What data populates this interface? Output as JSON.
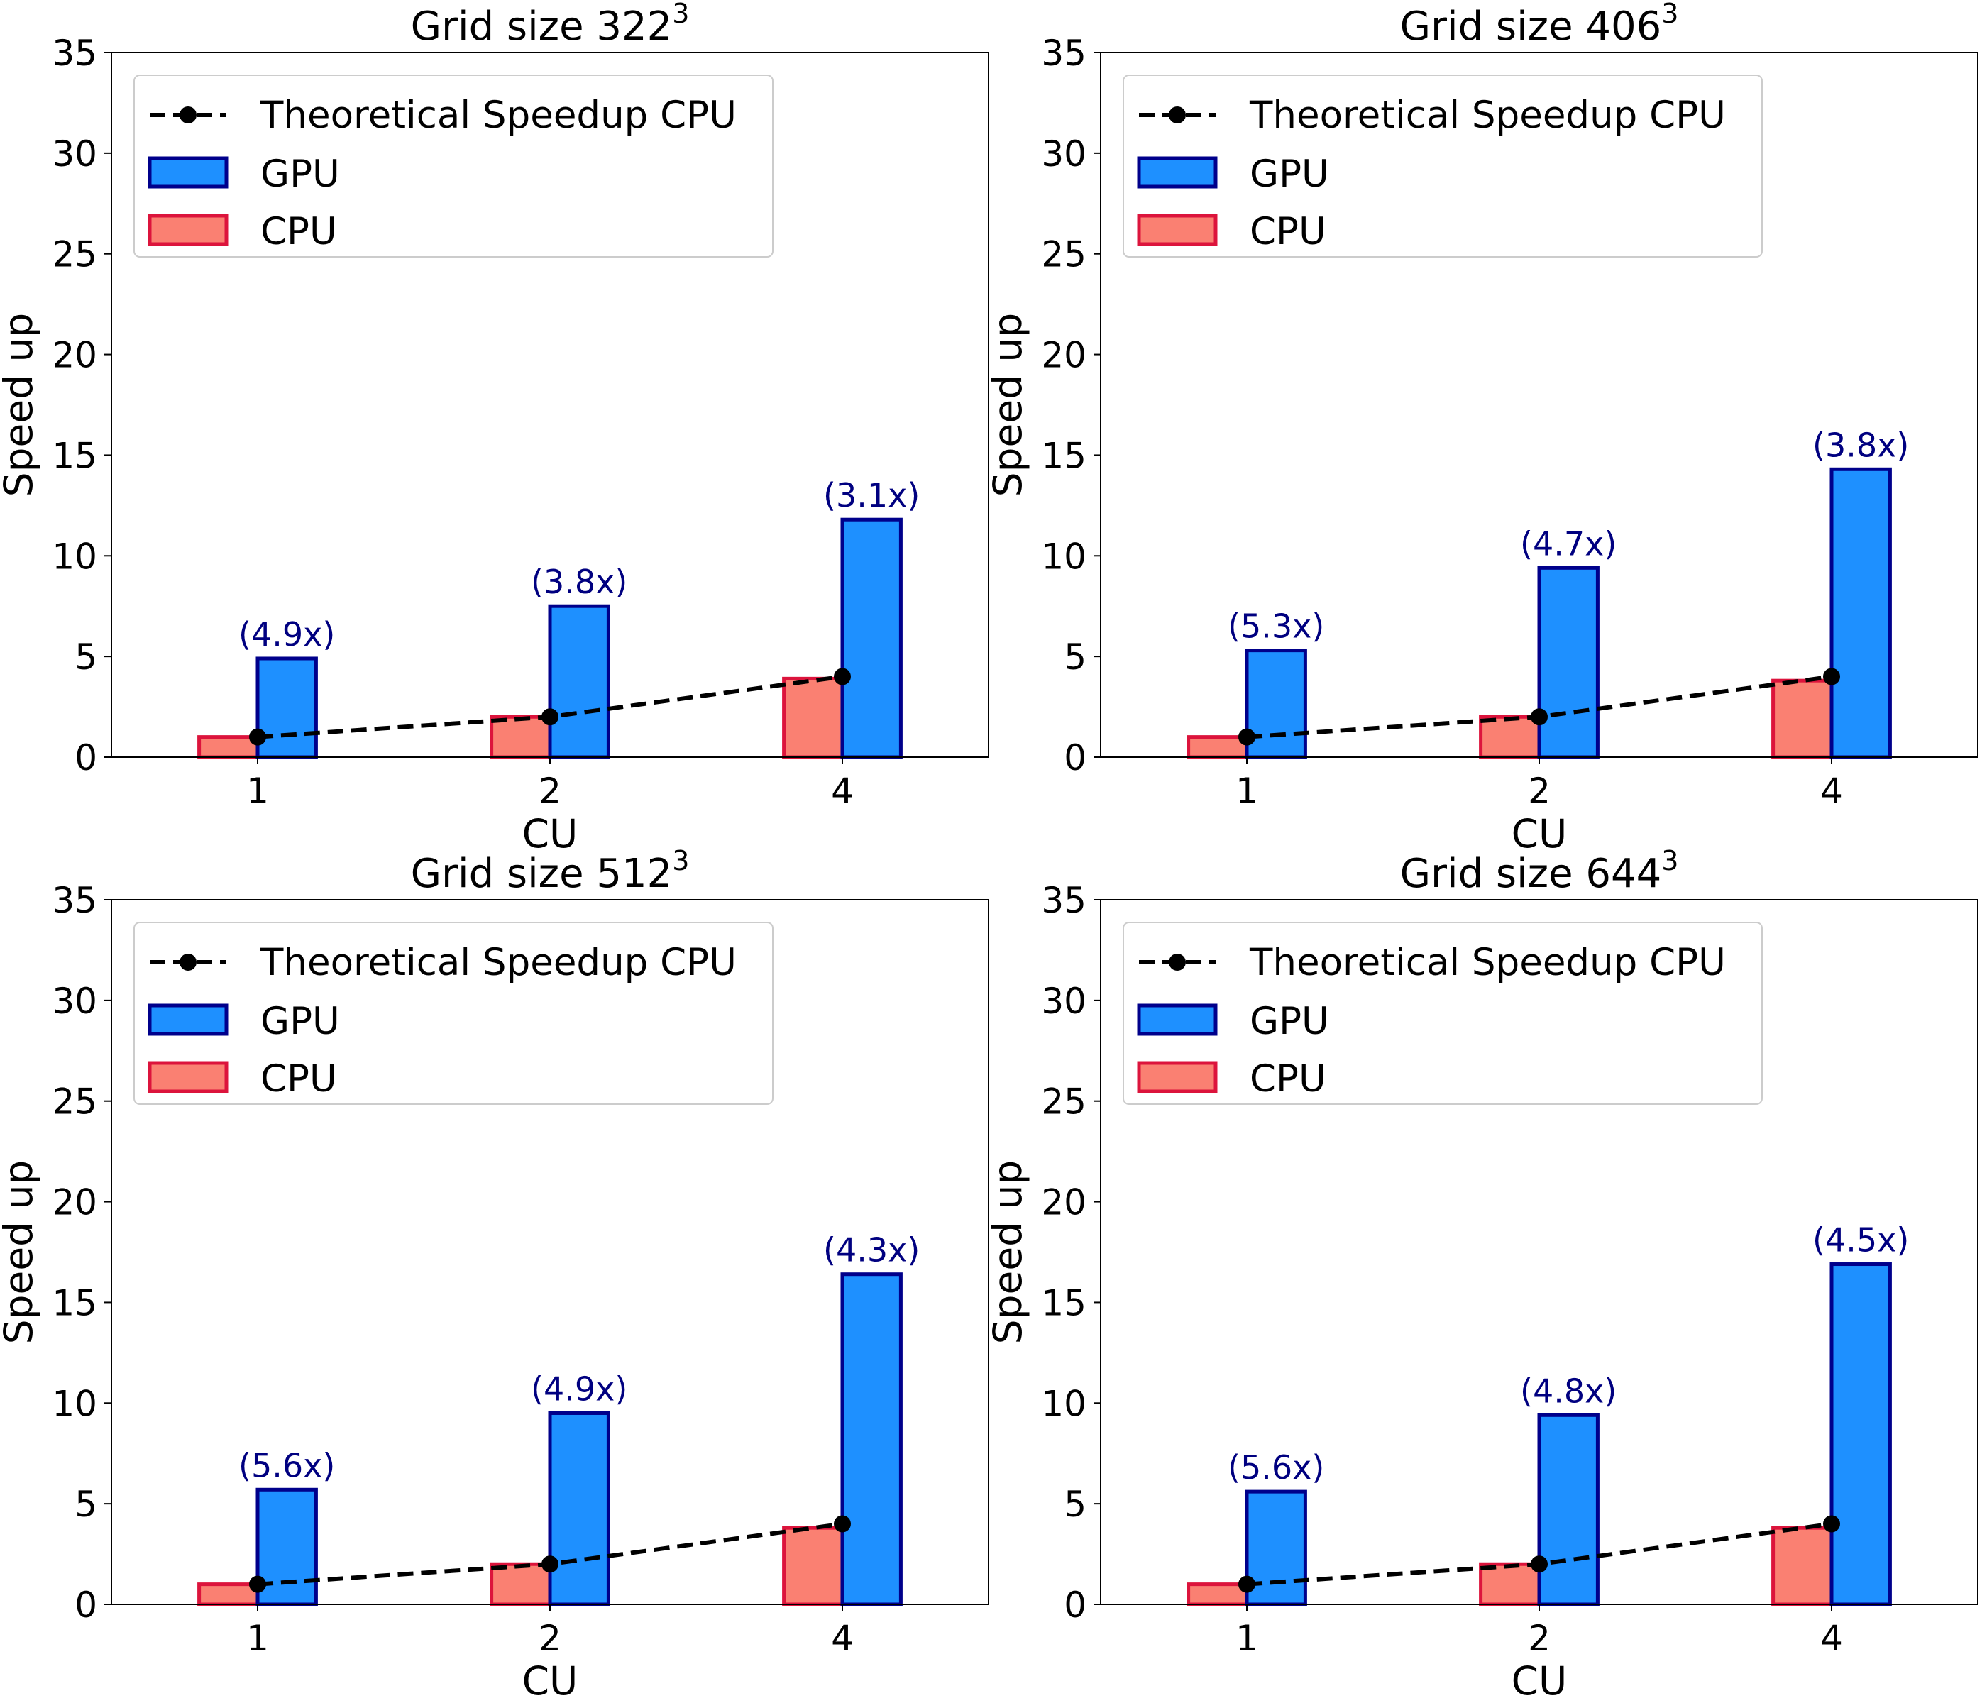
{
  "colors": {
    "gpu_fill": "#1E90FF",
    "gpu_edge": "#00008B",
    "cpu_fill": "#FA8072",
    "cpu_edge": "#DC143C",
    "theory_line": "#000000",
    "annotation": "#000080"
  },
  "chart_data": [
    {
      "type": "bar",
      "title": "Grid size 322",
      "title_superscript": "3",
      "xlabel": "CU",
      "ylabel": "Speed up",
      "categories": [
        "1",
        "2",
        "4"
      ],
      "ylim": [
        0,
        35
      ],
      "yticks": [
        "0",
        "5",
        "10",
        "15",
        "20",
        "25",
        "30",
        "35"
      ],
      "legend_position": "top-left",
      "legend": [
        "Theoretical Speedup CPU",
        "GPU",
        "CPU"
      ],
      "series": [
        {
          "name": "CPU",
          "kind": "bar",
          "values": [
            1.0,
            2.0,
            3.9
          ]
        },
        {
          "name": "GPU",
          "kind": "bar",
          "values": [
            4.9,
            7.5,
            11.8
          ]
        },
        {
          "name": "Theoretical Speedup CPU",
          "kind": "line",
          "values": [
            1,
            2,
            4
          ]
        }
      ],
      "annotations": [
        "(4.9x)",
        "(3.8x)",
        "(3.1x)"
      ]
    },
    {
      "type": "bar",
      "title": "Grid size 406",
      "title_superscript": "3",
      "xlabel": "CU",
      "ylabel": "Speed up",
      "categories": [
        "1",
        "2",
        "4"
      ],
      "ylim": [
        0,
        35
      ],
      "yticks": [
        "0",
        "5",
        "10",
        "15",
        "20",
        "25",
        "30",
        "35"
      ],
      "legend_position": "top-left",
      "legend": [
        "Theoretical Speedup CPU",
        "GPU",
        "CPU"
      ],
      "series": [
        {
          "name": "CPU",
          "kind": "bar",
          "values": [
            1.0,
            2.0,
            3.8
          ]
        },
        {
          "name": "GPU",
          "kind": "bar",
          "values": [
            5.3,
            9.4,
            14.3
          ]
        },
        {
          "name": "Theoretical Speedup CPU",
          "kind": "line",
          "values": [
            1,
            2,
            4
          ]
        }
      ],
      "annotations": [
        "(5.3x)",
        "(4.7x)",
        "(3.8x)"
      ]
    },
    {
      "type": "bar",
      "title": "Grid size 512",
      "title_superscript": "3",
      "xlabel": "CU",
      "ylabel": "Speed up",
      "categories": [
        "1",
        "2",
        "4"
      ],
      "ylim": [
        0,
        35
      ],
      "yticks": [
        "0",
        "5",
        "10",
        "15",
        "20",
        "25",
        "30",
        "35"
      ],
      "legend_position": "top-left",
      "legend": [
        "Theoretical Speedup CPU",
        "GPU",
        "CPU"
      ],
      "series": [
        {
          "name": "CPU",
          "kind": "bar",
          "values": [
            1.0,
            2.0,
            3.8
          ]
        },
        {
          "name": "GPU",
          "kind": "bar",
          "values": [
            5.7,
            9.5,
            16.4
          ]
        },
        {
          "name": "Theoretical Speedup CPU",
          "kind": "line",
          "values": [
            1,
            2,
            4
          ]
        }
      ],
      "annotations": [
        "(5.6x)",
        "(4.9x)",
        "(4.3x)"
      ]
    },
    {
      "type": "bar",
      "title": "Grid size 644",
      "title_superscript": "3",
      "xlabel": "CU",
      "ylabel": "Speed up",
      "categories": [
        "1",
        "2",
        "4"
      ],
      "ylim": [
        0,
        35
      ],
      "yticks": [
        "0",
        "5",
        "10",
        "15",
        "20",
        "25",
        "30",
        "35"
      ],
      "legend_position": "top-left",
      "legend": [
        "Theoretical Speedup CPU",
        "GPU",
        "CPU"
      ],
      "series": [
        {
          "name": "CPU",
          "kind": "bar",
          "values": [
            1.0,
            2.0,
            3.8
          ]
        },
        {
          "name": "GPU",
          "kind": "bar",
          "values": [
            5.6,
            9.4,
            16.9
          ]
        },
        {
          "name": "Theoretical Speedup CPU",
          "kind": "line",
          "values": [
            1,
            2,
            4
          ]
        }
      ],
      "annotations": [
        "(5.6x)",
        "(4.8x)",
        "(4.5x)"
      ]
    }
  ]
}
